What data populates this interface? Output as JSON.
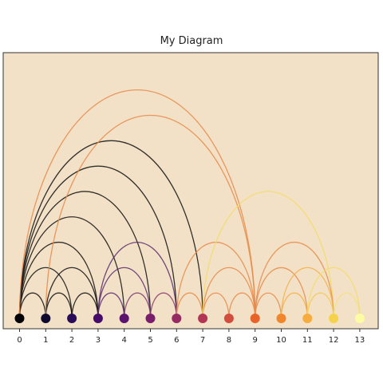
{
  "title": "My Diagram",
  "background_color": "#f2e1c6",
  "frame_color": "#333333",
  "nodes": [
    {
      "label": "0",
      "color": "#000004"
    },
    {
      "label": "1",
      "color": "#0f0a2d"
    },
    {
      "label": "2",
      "color": "#2a0b5a"
    },
    {
      "label": "3",
      "color": "#460b6a"
    },
    {
      "label": "4",
      "color": "#5d126e"
    },
    {
      "label": "5",
      "color": "#7a1d6d"
    },
    {
      "label": "6",
      "color": "#962a63"
    },
    {
      "label": "7",
      "color": "#b33554"
    },
    {
      "label": "8",
      "color": "#d24d3e"
    },
    {
      "label": "9",
      "color": "#e76328"
    },
    {
      "label": "10",
      "color": "#f1862a"
    },
    {
      "label": "11",
      "color": "#f6ac3e"
    },
    {
      "label": "12",
      "color": "#f6d24a"
    },
    {
      "label": "13",
      "color": "#fbfca4"
    }
  ],
  "arcs": [
    {
      "source": 0,
      "target": 1,
      "color": "#111111"
    },
    {
      "source": 0,
      "target": 2,
      "color": "#111111"
    },
    {
      "source": 0,
      "target": 3,
      "color": "#111111"
    },
    {
      "source": 0,
      "target": 4,
      "color": "#111111"
    },
    {
      "source": 0,
      "target": 5,
      "color": "#111111"
    },
    {
      "source": 0,
      "target": 6,
      "color": "#111111"
    },
    {
      "source": 0,
      "target": 7,
      "color": "#111111"
    },
    {
      "source": 0,
      "target": 9,
      "color": "#e8894a"
    },
    {
      "source": 1,
      "target": 2,
      "color": "#111111"
    },
    {
      "source": 1,
      "target": 3,
      "color": "#111111"
    },
    {
      "source": 1,
      "target": 9,
      "color": "#e8894a"
    },
    {
      "source": 2,
      "target": 3,
      "color": "#111111"
    },
    {
      "source": 3,
      "target": 4,
      "color": "#5a2d6e"
    },
    {
      "source": 3,
      "target": 5,
      "color": "#5a2d6e"
    },
    {
      "source": 3,
      "target": 6,
      "color": "#5a2d6e"
    },
    {
      "source": 4,
      "target": 5,
      "color": "#7a3d6e"
    },
    {
      "source": 5,
      "target": 6,
      "color": "#8a3d6a"
    },
    {
      "source": 6,
      "target": 7,
      "color": "#e8894a"
    },
    {
      "source": 6,
      "target": 9,
      "color": "#e8894a"
    },
    {
      "source": 7,
      "target": 8,
      "color": "#e8894a"
    },
    {
      "source": 7,
      "target": 9,
      "color": "#e8894a"
    },
    {
      "source": 7,
      "target": 12,
      "color": "#f3dc6a"
    },
    {
      "source": 8,
      "target": 9,
      "color": "#e8894a"
    },
    {
      "source": 9,
      "target": 10,
      "color": "#e8894a"
    },
    {
      "source": 9,
      "target": 11,
      "color": "#e8894a"
    },
    {
      "source": 9,
      "target": 12,
      "color": "#e8894a"
    },
    {
      "source": 10,
      "target": 11,
      "color": "#f3b04a"
    },
    {
      "source": 10,
      "target": 12,
      "color": "#f3b04a"
    },
    {
      "source": 11,
      "target": 12,
      "color": "#f3c85a"
    },
    {
      "source": 11,
      "target": 13,
      "color": "#f3dc6a"
    },
    {
      "source": 12,
      "target": 13,
      "color": "#f3e27a"
    }
  ]
}
